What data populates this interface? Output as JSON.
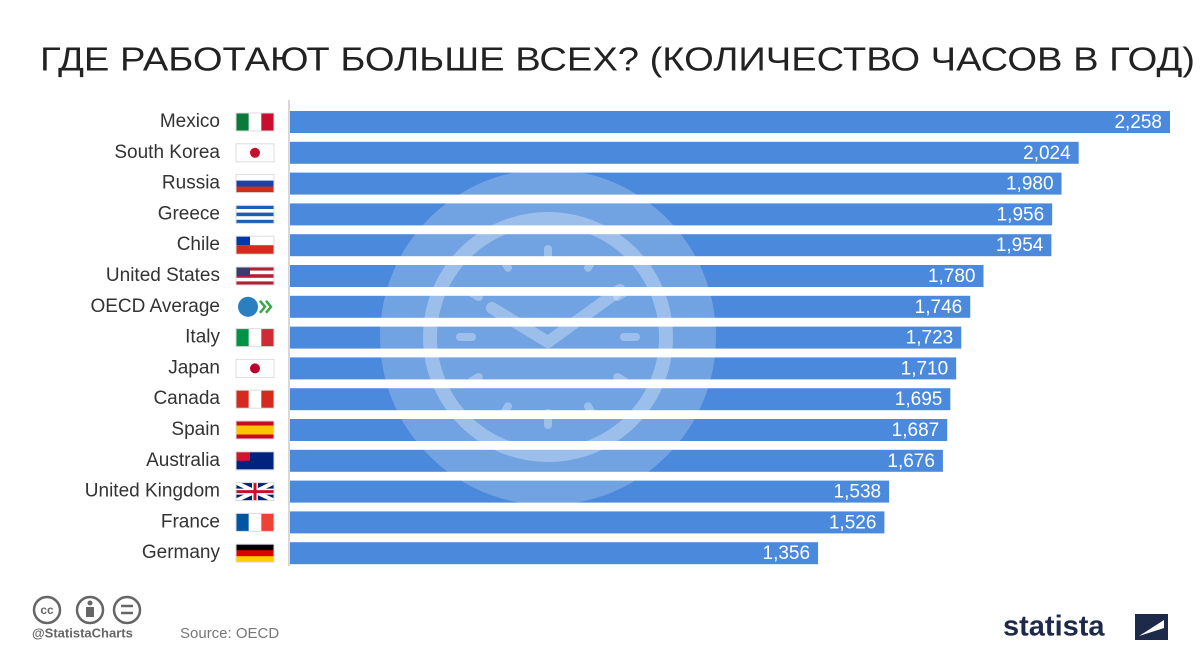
{
  "chart_data": {
    "type": "bar",
    "orientation": "horizontal",
    "title": "ГДЕ РАБОТАЮТ БОЛЬШЕ ВСЕХ? (КОЛИЧЕСТВО ЧАСОВ В ГОД)",
    "categories": [
      "Mexico",
      "South Korea",
      "Russia",
      "Greece",
      "Chile",
      "United States",
      "OECD Average",
      "Italy",
      "Japan",
      "Canada",
      "Spain",
      "Australia",
      "United Kingdom",
      "France",
      "Germany"
    ],
    "values": [
      2258,
      2024,
      1980,
      1956,
      1954,
      1780,
      1746,
      1723,
      1710,
      1695,
      1687,
      1676,
      1538,
      1526,
      1356
    ],
    "value_labels": [
      "2,258",
      "2,024",
      "1,980",
      "1,956",
      "1,954",
      "1,780",
      "1,746",
      "1,723",
      "1,710",
      "1,695",
      "1,687",
      "1,676",
      "1,538",
      "1,526",
      "1,356"
    ],
    "color": "#4a89dc"
  },
  "footer": {
    "handle": "@StatistaCharts",
    "source": "Source: OECD",
    "logo": "statista"
  }
}
